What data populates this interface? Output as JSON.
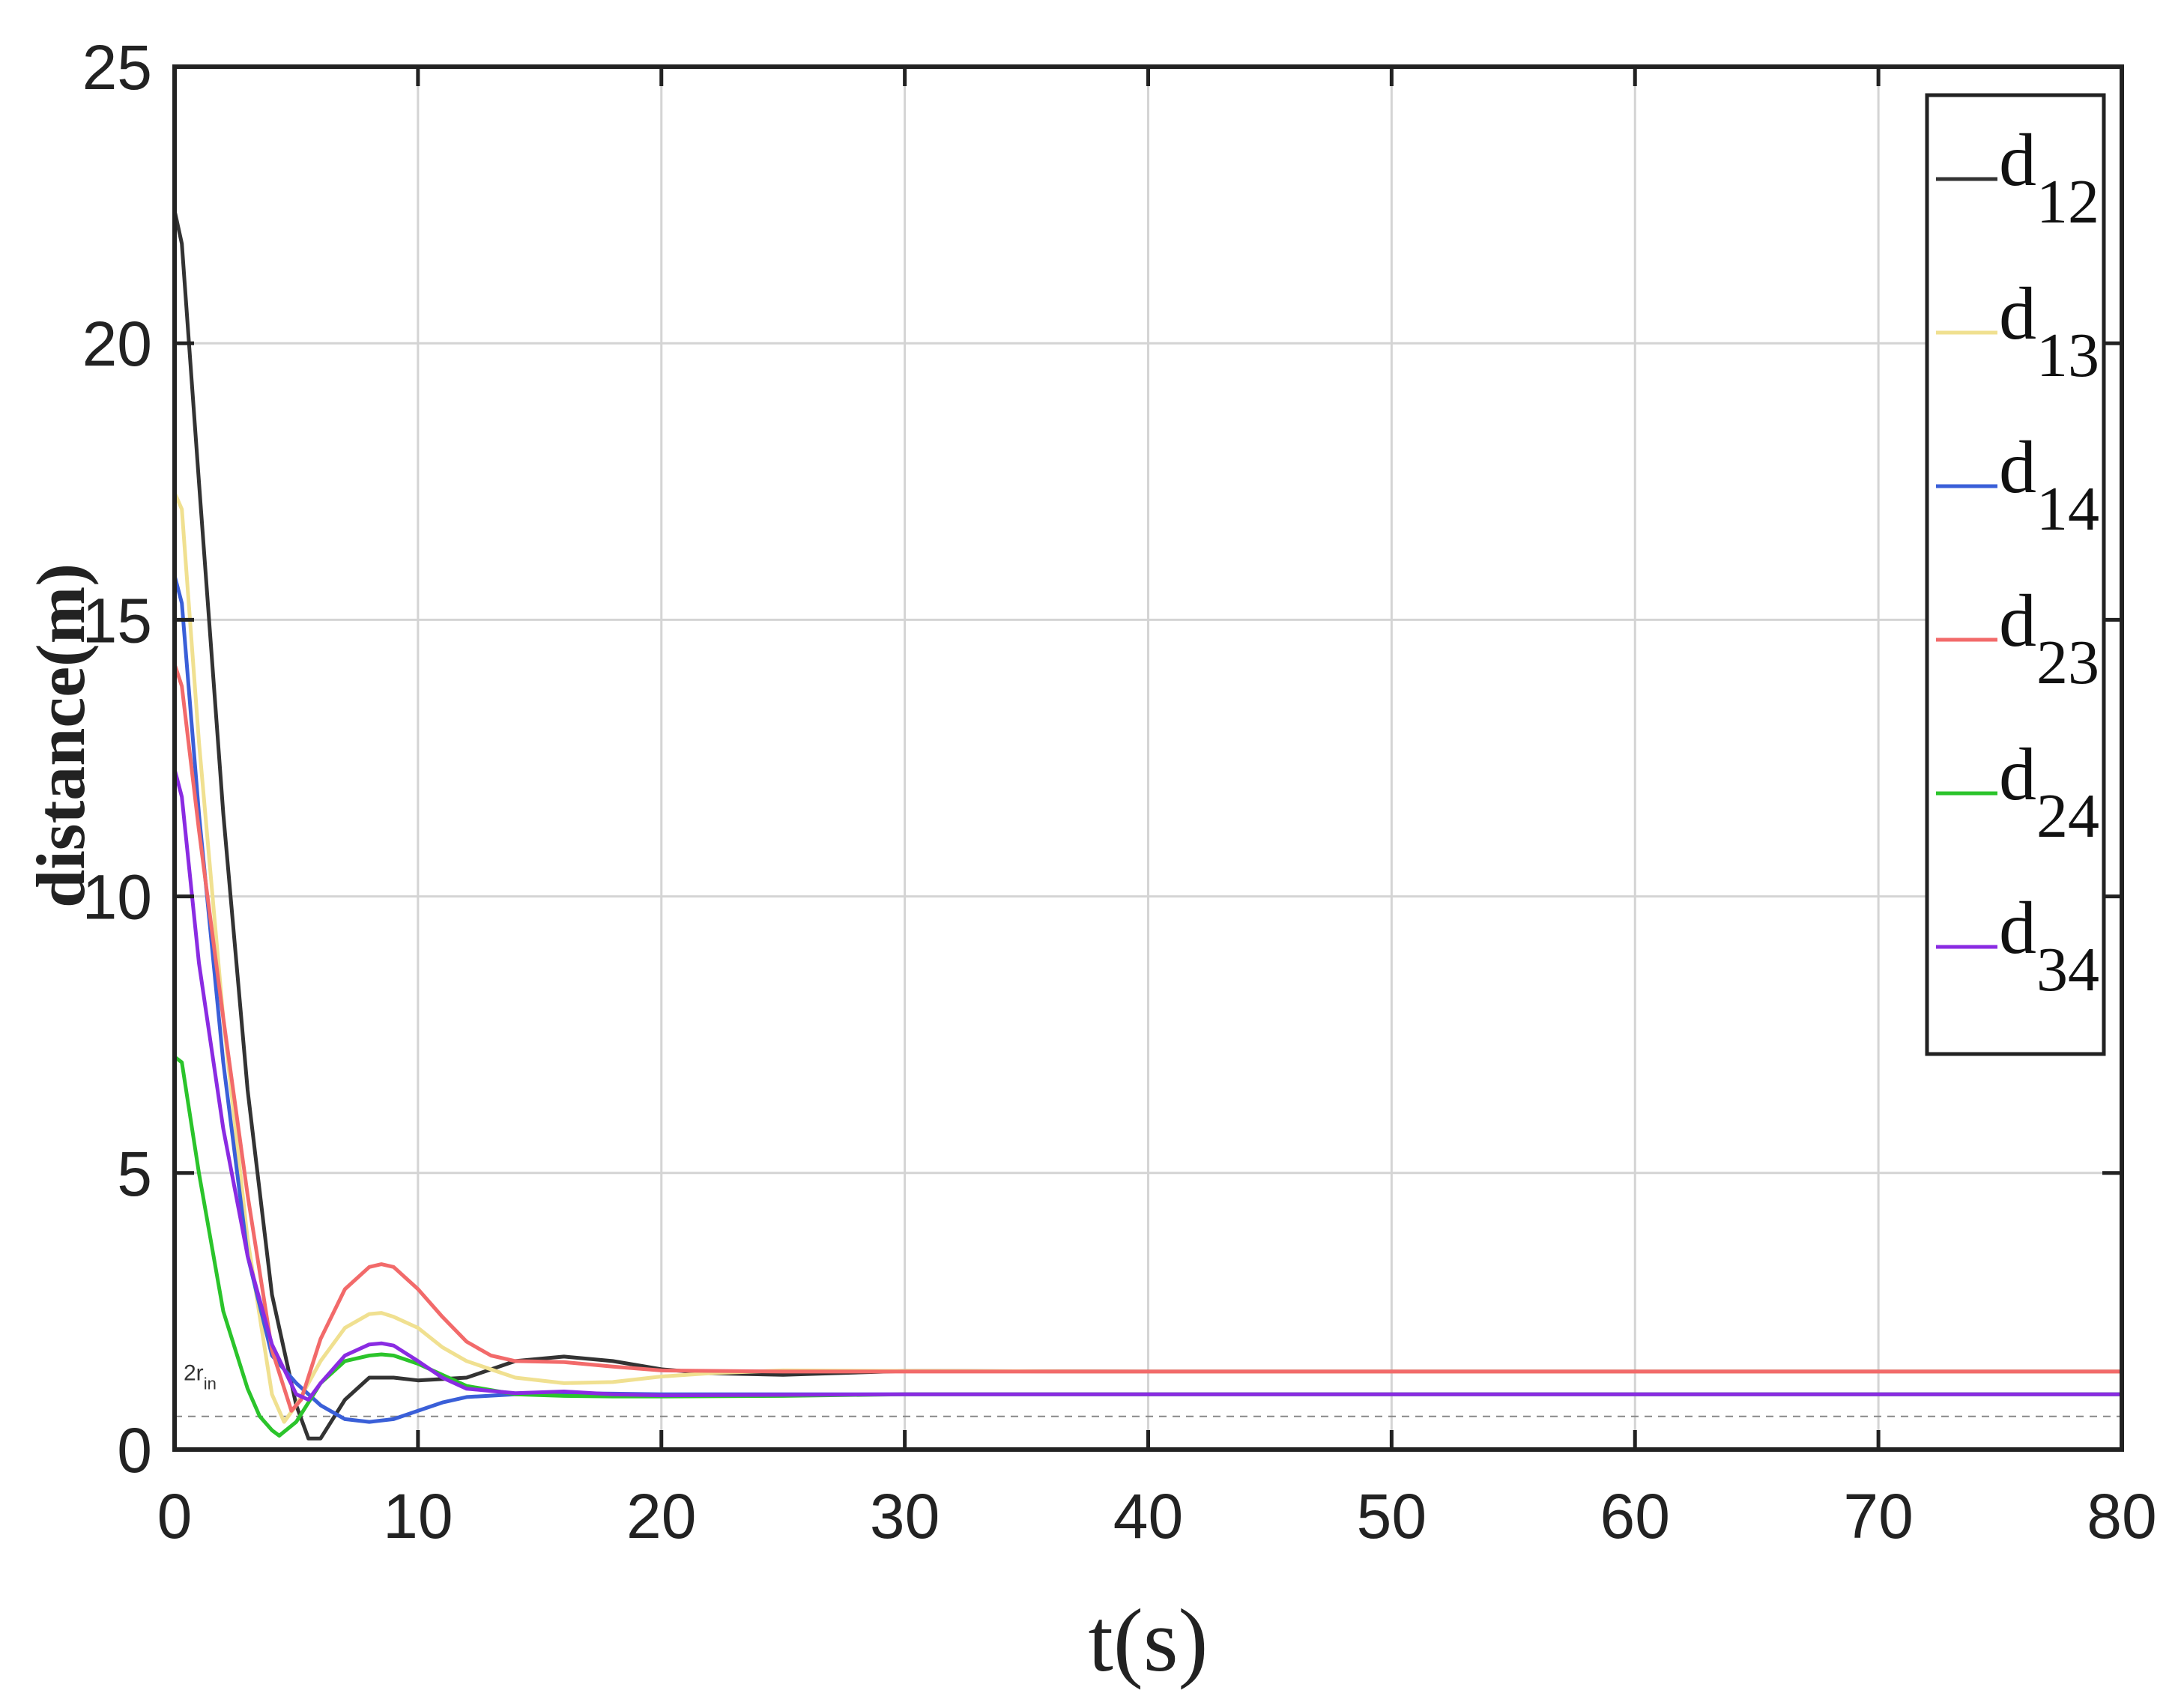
{
  "chart_data": {
    "type": "line",
    "xlabel": "t(s)",
    "ylabel": "distance(m)",
    "xlim": [
      0,
      80
    ],
    "ylim": [
      0,
      25
    ],
    "xticks": [
      "0",
      "10",
      "20",
      "30",
      "40",
      "50",
      "60",
      "70",
      "80"
    ],
    "yticks": [
      "0",
      "5",
      "10",
      "15",
      "20",
      "25"
    ],
    "grid": true,
    "legend_position": "top-right",
    "reference_line": {
      "label_main": "2r",
      "label_sub": "in",
      "y": 0.6,
      "color": "#888888"
    },
    "series": [
      {
        "name": "d",
        "sub": "12",
        "color": "#333333",
        "x": [
          0,
          0.3,
          1,
          2,
          3,
          4,
          5,
          5.5,
          6,
          7,
          8,
          9,
          10,
          12,
          14,
          16,
          18,
          20,
          22,
          25,
          30,
          40,
          50,
          60,
          70,
          80
        ],
        "y": [
          22.4,
          21.8,
          17.5,
          11.5,
          6.5,
          2.8,
          0.8,
          0.2,
          0.2,
          0.9,
          1.3,
          1.3,
          1.25,
          1.3,
          1.6,
          1.68,
          1.6,
          1.45,
          1.38,
          1.35,
          1.42,
          1.41,
          1.41,
          1.41,
          1.41,
          1.41
        ]
      },
      {
        "name": "d",
        "sub": "13",
        "color": "#f0e090",
        "x": [
          0,
          0.3,
          1,
          2,
          3,
          4,
          4.5,
          5,
          6,
          7,
          8,
          8.5,
          9,
          10,
          11,
          12,
          14,
          16,
          18,
          20,
          22,
          25,
          30,
          40,
          50,
          60,
          70,
          80
        ],
        "y": [
          17.3,
          17.0,
          12.8,
          7.8,
          3.8,
          1.0,
          0.5,
          0.8,
          1.6,
          2.2,
          2.45,
          2.47,
          2.4,
          2.2,
          1.85,
          1.6,
          1.3,
          1.2,
          1.22,
          1.32,
          1.38,
          1.43,
          1.42,
          1.41,
          1.41,
          1.41,
          1.41,
          1.41
        ]
      },
      {
        "name": "d",
        "sub": "14",
        "color": "#3a5fd8",
        "x": [
          0,
          0.3,
          1,
          2,
          3,
          4,
          5,
          6,
          7,
          8,
          9,
          10,
          11,
          12,
          14,
          16,
          18,
          20,
          25,
          30,
          40,
          50,
          60,
          70,
          80
        ],
        "y": [
          15.8,
          15.3,
          11.5,
          7.0,
          3.5,
          1.7,
          1.2,
          0.8,
          0.55,
          0.5,
          0.55,
          0.7,
          0.85,
          0.95,
          1.0,
          1.02,
          1.01,
          1.0,
          1.0,
          1.0,
          1.0,
          1.0,
          1.0,
          1.0,
          1.0
        ]
      },
      {
        "name": "d",
        "sub": "23",
        "color": "#f26a6a",
        "x": [
          0,
          0.3,
          1,
          2,
          3,
          4,
          4.8,
          5.2,
          6,
          7,
          8,
          8.5,
          9,
          10,
          11,
          12,
          13,
          14,
          16,
          18,
          20,
          25,
          30,
          40,
          50,
          60,
          70,
          80
        ],
        "y": [
          14.2,
          13.8,
          11.2,
          7.8,
          4.6,
          1.8,
          0.7,
          0.9,
          2.0,
          2.9,
          3.3,
          3.35,
          3.3,
          2.9,
          2.4,
          1.95,
          1.7,
          1.6,
          1.58,
          1.5,
          1.43,
          1.41,
          1.41,
          1.41,
          1.41,
          1.41,
          1.41,
          1.41
        ]
      },
      {
        "name": "d",
        "sub": "24",
        "color": "#2bc42b",
        "x": [
          0,
          0.3,
          1,
          2,
          3,
          3.5,
          4,
          4.3,
          5,
          6,
          7,
          8,
          8.5,
          9,
          10,
          11,
          12,
          14,
          16,
          18,
          20,
          25,
          30,
          40,
          50,
          60,
          70,
          80
        ],
        "y": [
          7.1,
          7.0,
          5.0,
          2.5,
          1.1,
          0.6,
          0.35,
          0.25,
          0.5,
          1.2,
          1.6,
          1.7,
          1.72,
          1.7,
          1.55,
          1.35,
          1.15,
          1.0,
          0.97,
          0.96,
          0.96,
          0.97,
          1.0,
          1.0,
          1.0,
          1.0,
          1.0,
          1.0
        ]
      },
      {
        "name": "d",
        "sub": "34",
        "color": "#8a2be2",
        "x": [
          0,
          0.3,
          1,
          2,
          3,
          4,
          5,
          5.5,
          6,
          7,
          8,
          8.5,
          9,
          10,
          11,
          12,
          14,
          16,
          18,
          20,
          25,
          30,
          40,
          50,
          60,
          70,
          80
        ],
        "y": [
          12.3,
          11.8,
          8.8,
          5.8,
          3.5,
          1.9,
          1.0,
          0.9,
          1.2,
          1.7,
          1.9,
          1.92,
          1.88,
          1.6,
          1.3,
          1.1,
          1.02,
          1.05,
          1.0,
          0.98,
          0.99,
          1.0,
          1.0,
          1.0,
          1.0,
          1.0,
          1.0
        ]
      }
    ]
  }
}
